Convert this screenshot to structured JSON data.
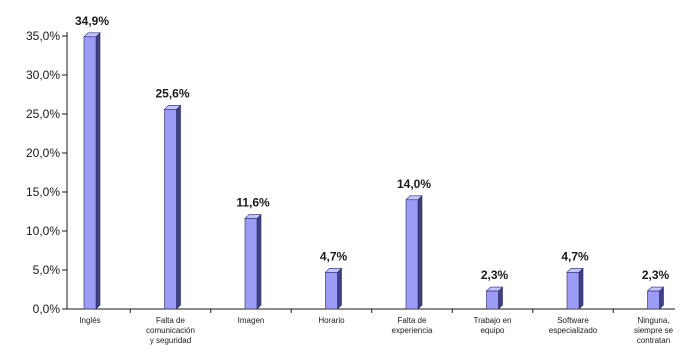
{
  "chart_data": {
    "type": "bar",
    "title": "",
    "xlabel": "",
    "ylabel": "",
    "ylim": [
      0,
      35
    ],
    "y_ticks": [
      0,
      5,
      10,
      15,
      20,
      25,
      30,
      35
    ],
    "y_tick_labels": [
      "0,0%",
      "5,0%",
      "10,0%",
      "15,0%",
      "20,0%",
      "25,0%",
      "30,0%",
      "35,0%"
    ],
    "grid": false,
    "legend": "none",
    "categories": [
      [
        "Inglés"
      ],
      [
        "Falta de",
        "comunicación",
        "y seguridad"
      ],
      [
        "Imagen"
      ],
      [
        "Horario"
      ],
      [
        "Falta de",
        "experiencia"
      ],
      [
        "Trabajo en",
        "equipo"
      ],
      [
        "Software",
        "especializado"
      ],
      [
        "Ninguna,",
        "siempre se",
        "contratan"
      ]
    ],
    "values": [
      34.9,
      25.6,
      11.6,
      4.7,
      14.0,
      2.3,
      4.7,
      2.3
    ],
    "value_labels": [
      "34,9%",
      "25,6%",
      "11,6%",
      "4,7%",
      "14,0%",
      "2,3%",
      "4,7%",
      "2,3%"
    ],
    "colors": {
      "bar_front": "#9c9cf6",
      "bar_side": "#3f3f86",
      "bar_top": "#c4c4ff",
      "axis": "#1a1a1a"
    }
  }
}
